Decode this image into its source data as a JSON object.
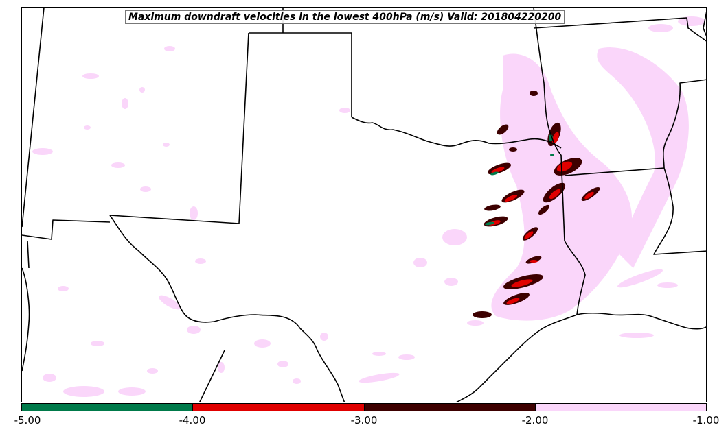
{
  "title": "Maximum downdraft velocities in the lowest 400hPa (m/s) Valid: 201804220200",
  "colorbar": {
    "segments": [
      {
        "range": "-5.00 to -4.00",
        "color": "#007a4a"
      },
      {
        "range": "-4.00 to -3.00",
        "color": "#e00000"
      },
      {
        "range": "-3.00 to -2.00",
        "color": "#3d0000"
      },
      {
        "range": "-2.00 to -1.00",
        "color": "#fad6fa"
      }
    ],
    "ticks": [
      "-5.00",
      "-4.00",
      "-3.00",
      "-2.00",
      "-1.00"
    ]
  },
  "colors": {
    "border": "#000000",
    "light_field": "#fad6fa"
  }
}
